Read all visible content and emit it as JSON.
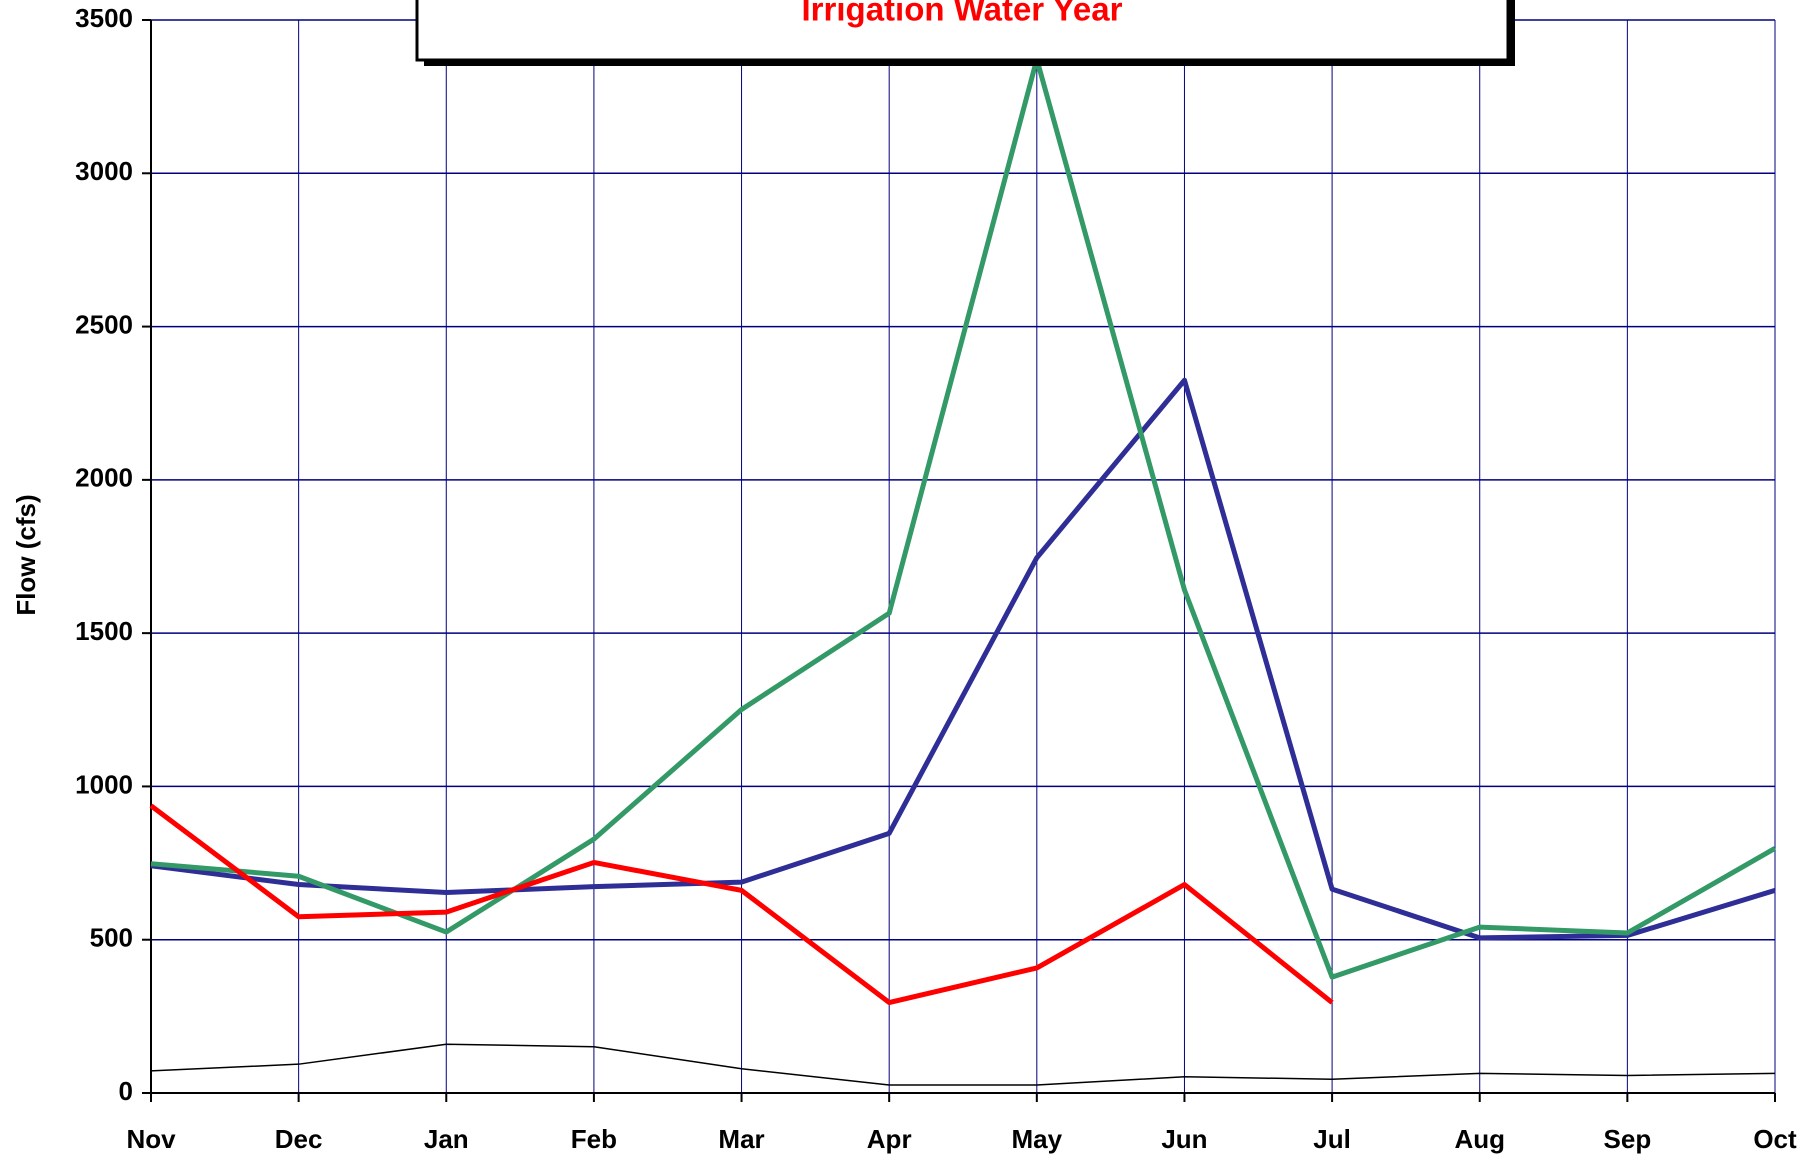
{
  "chart_data": {
    "type": "line",
    "title": "Irrigation Water Year",
    "ylabel": "Flow (cfs)",
    "categories": [
      "Nov",
      "Dec",
      "Jan",
      "Feb",
      "Mar",
      "Apr",
      "May",
      "Jun",
      "Jul",
      "Aug",
      "Sep",
      "Oct"
    ],
    "series": [
      {
        "color": "#2e2e96",
        "values": [
          741,
          680,
          654,
          673,
          688,
          847,
          1746,
          2325,
          665,
          506,
          514,
          661
        ]
      },
      {
        "color": "#339966",
        "values": [
          748,
          707,
          525,
          828,
          1251,
          1565,
          3372,
          1641,
          378,
          541,
          522,
          798
        ]
      },
      {
        "color": "#ff0000",
        "values": [
          937,
          575,
          590,
          752,
          661,
          295,
          408,
          680,
          295,
          null,
          null,
          null
        ]
      },
      {
        "color": "#000000",
        "values": [
          72,
          94,
          159,
          151,
          79,
          26,
          26,
          53,
          45,
          64,
          57,
          64
        ]
      }
    ],
    "ylim": [
      0,
      3500
    ],
    "yticks": [
      0,
      500,
      1000,
      1500,
      2000,
      2500,
      3000,
      3500
    ],
    "grid": true
  }
}
